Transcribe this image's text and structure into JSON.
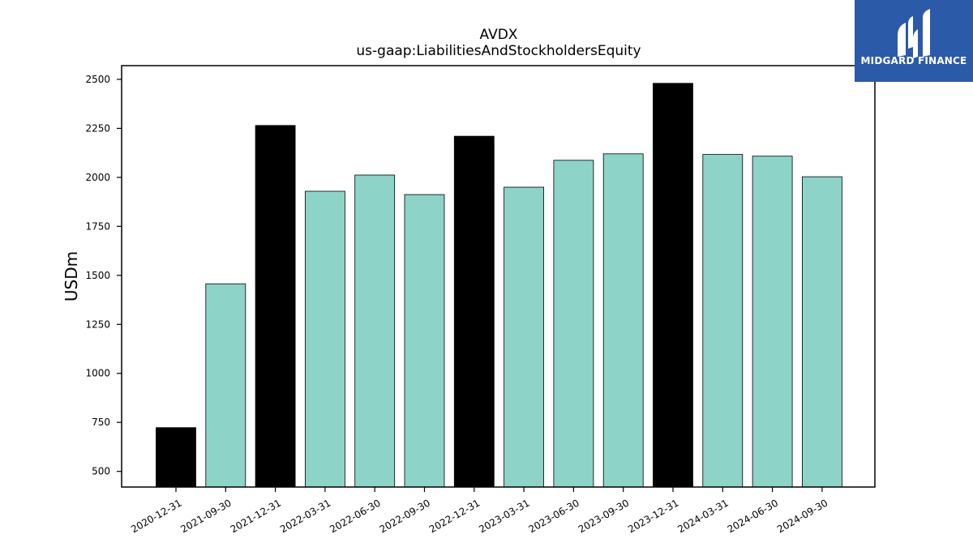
{
  "brand": {
    "name": "MIDGARD FINANCE",
    "logo_icon": "midgard-logo-icon",
    "background_color": "#2b5aa8",
    "text_color": "#ffffff"
  },
  "chart_data": {
    "type": "bar",
    "title": "AVDX",
    "subtitle": "us-gaap:LiabilitiesAndStockholdersEquity",
    "xlabel": "",
    "ylabel": "USDm",
    "categories": [
      "2020-12-31",
      "2021-09-30",
      "2021-12-31",
      "2022-03-31",
      "2022-06-30",
      "2022-09-30",
      "2022-12-31",
      "2023-03-31",
      "2023-06-30",
      "2023-09-30",
      "2023-12-31",
      "2024-03-31",
      "2024-06-30",
      "2024-09-30"
    ],
    "values": [
      723,
      1457,
      2265,
      1929,
      2012,
      1912,
      2210,
      1950,
      2087,
      2120,
      2480,
      2117,
      2108,
      2003
    ],
    "bar_colors": [
      "#000000",
      "#8dd3c7",
      "#000000",
      "#8dd3c7",
      "#8dd3c7",
      "#8dd3c7",
      "#000000",
      "#8dd3c7",
      "#8dd3c7",
      "#8dd3c7",
      "#000000",
      "#8dd3c7",
      "#8dd3c7",
      "#8dd3c7"
    ],
    "ylim": [
      420,
      2570
    ],
    "yticks": [
      500,
      750,
      1000,
      1250,
      1500,
      1750,
      2000,
      2250,
      2500
    ],
    "grid": false,
    "legend": "none"
  }
}
